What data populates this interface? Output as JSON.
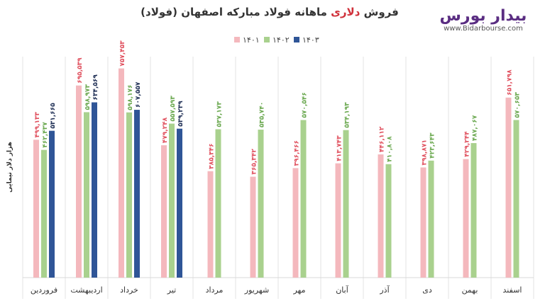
{
  "chart_data": {
    "type": "bar",
    "title": {
      "before": "فروش",
      "highlight": "دلاری",
      "after": "ماهانه فولاد مبارکه اصفهان (فولاد)"
    },
    "y_label": "هزار دلار نیمایی",
    "categories": [
      "فروردین",
      "اردیبهشت",
      "خرداد",
      "تیر",
      "مرداد",
      "شهریور",
      "مهر",
      "آبان",
      "آذر",
      "دی",
      "بهمن",
      "اسفند"
    ],
    "series": [
      {
        "name": "۱۴۰۱",
        "color": "#f4b8bd",
        "label_color": "#e0505e",
        "values": [
          499133,
          695539,
          757453,
          479248,
          385346,
          365342,
          396466,
          413743,
          446112,
          398871,
          429244,
          651798
        ],
        "value_labels": [
          "۴۹۹,۱۳۳",
          "۶۹۵,۵۳۹",
          "۷۵۷,۴۵۳",
          "۴۷۹,۲۴۸",
          "۳۸۵,۳۴۶",
          "۳۶۵,۳۴۲",
          "۳۹۶,۴۶۶",
          "۴۱۳,۷۴۳",
          "۴۴۶,۱۱۲",
          "۳۹۸,۸۷۱",
          "۴۲۹,۲۴۴",
          "۶۵۱,۷۹۸"
        ]
      },
      {
        "name": "۱۴۰۲",
        "color": "#a9d18e",
        "label_color": "#6aa84f",
        "values": [
          462437,
          598973,
          598176,
          557593,
          537173,
          535740,
          570546,
          534193,
          410808,
          423643,
          487067,
          570653
        ],
        "value_labels": [
          "۴۶۲,۴۳۷",
          "۵۹۸,۹۷۳",
          "۵۹۸,۱۷۶",
          "۵۵۷,۵۹۳",
          "۵۳۷,۱۷۳",
          "۵۳۵,۷۴۰",
          "۵۷۰,۵۴۶",
          "۵۳۴,۱۹۳",
          "۴۱۰,۸۰۸",
          "۴۲۳,۶۴۳",
          "۴۸۷,۰۶۷",
          "۵۷۰,۶۵۳"
        ]
      },
      {
        "name": "۱۴۰۳",
        "color": "#2f5597",
        "label_color": "#1f2f55",
        "values": [
          531665,
          634569,
          607557,
          539239,
          null,
          null,
          null,
          null,
          null,
          null,
          null,
          null
        ],
        "value_labels": [
          "۵۳۱,۶۶۵",
          "۶۳۴,۵۶۹",
          "۶۰۷,۵۵۷",
          "۵۳۹,۲۳۹",
          null,
          null,
          null,
          null,
          null,
          null,
          null,
          null
        ]
      }
    ],
    "ylim": [
      0,
      800000
    ]
  },
  "logo": {
    "name": "بیدار بورس",
    "url": "www.Bidarbourse.com"
  }
}
